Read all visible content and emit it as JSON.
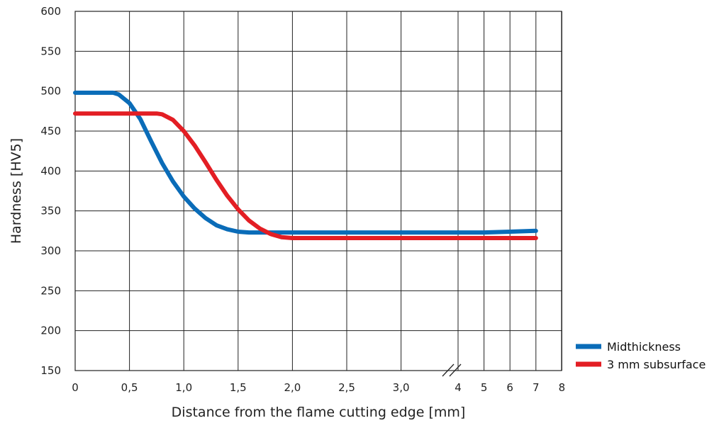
{
  "chart_data": {
    "type": "line",
    "title": "",
    "xlabel": "Distance from the flame cutting edge [mm]",
    "ylabel": "Hardness [HV5]",
    "ylim": [
      150,
      600
    ],
    "yticks": [
      150,
      200,
      250,
      300,
      350,
      400,
      450,
      500,
      550,
      600
    ],
    "xticks": [
      {
        "label": "0",
        "value": 0
      },
      {
        "label": "0,5",
        "value": 0.5
      },
      {
        "label": "1,0",
        "value": 1.0
      },
      {
        "label": "1,5",
        "value": 1.5
      },
      {
        "label": "2,0",
        "value": 2.0
      },
      {
        "label": "2,5",
        "value": 2.5
      },
      {
        "label": "3,0",
        "value": 3.0
      },
      {
        "label": "4",
        "value": 4
      },
      {
        "label": "5",
        "value": 5
      },
      {
        "label": "6",
        "value": 6
      },
      {
        "label": "7",
        "value": 7
      },
      {
        "label": "8",
        "value": 8
      }
    ],
    "axis_break": "between 3,0 and 4",
    "grid": true,
    "legend_position": "bottom-right",
    "series": [
      {
        "name": "Midthickness",
        "color": "#0a6cb8",
        "x": [
          0,
          0.2,
          0.35,
          0.4,
          0.5,
          0.6,
          0.7,
          0.8,
          0.9,
          1.0,
          1.1,
          1.2,
          1.3,
          1.4,
          1.5,
          1.6,
          2.0,
          2.5,
          3.0,
          4,
          5,
          6,
          7
        ],
        "y": [
          498,
          498,
          498,
          496,
          485,
          465,
          437,
          410,
          387,
          368,
          353,
          341,
          332,
          327,
          324,
          323,
          323,
          323,
          323,
          323,
          323,
          324,
          325
        ]
      },
      {
        "name": "3 mm subsurface",
        "color": "#e31e24",
        "x": [
          0,
          0.5,
          0.75,
          0.8,
          0.9,
          1.0,
          1.1,
          1.2,
          1.3,
          1.4,
          1.5,
          1.6,
          1.7,
          1.8,
          1.9,
          2.0,
          2.5,
          3.0,
          4,
          5,
          6,
          7
        ],
        "y": [
          472,
          472,
          472,
          471,
          464,
          450,
          432,
          411,
          389,
          369,
          352,
          338,
          328,
          321,
          317,
          316,
          316,
          316,
          316,
          316,
          316,
          316
        ]
      }
    ]
  }
}
